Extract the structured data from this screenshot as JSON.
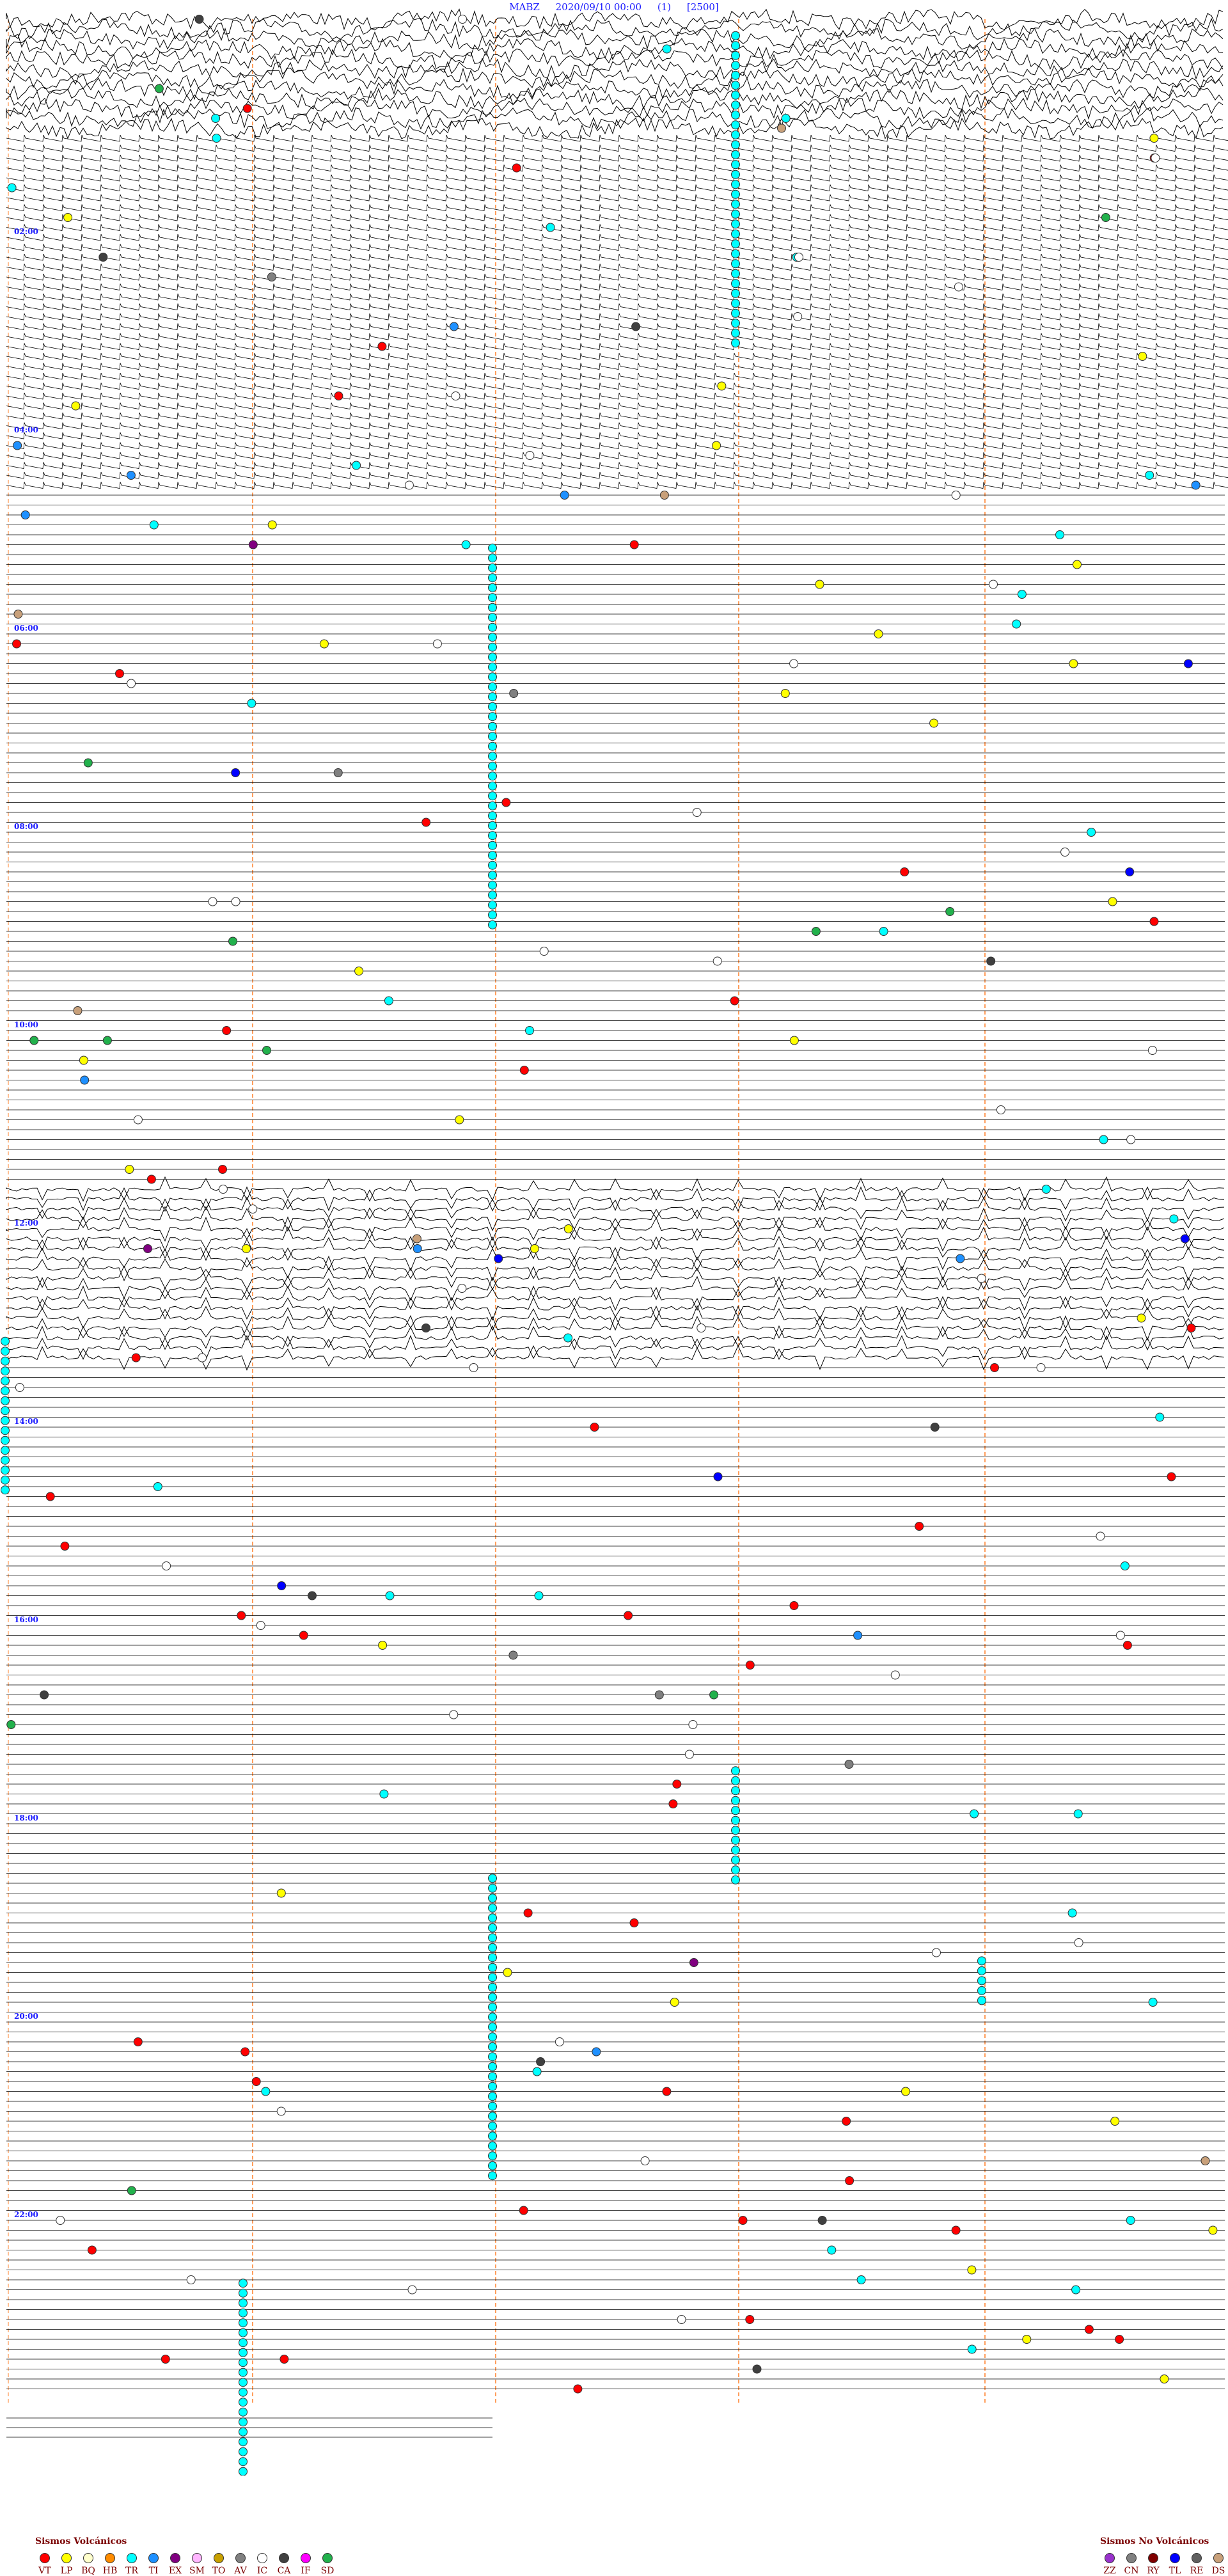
{
  "header": {
    "station": "MABZ",
    "datetime": "2020/09/10 00:00",
    "component": "(1)",
    "scale": "[2500]"
  },
  "hour_labels": [
    "02:00",
    "04:00",
    "06:00",
    "08:00",
    "10:00",
    "12:00",
    "14:00",
    "16:00",
    "18:00",
    "20:00",
    "22:00"
  ],
  "legend_volcanic": {
    "title": "Sismos Volcánicos",
    "items": [
      {
        "code": "VT",
        "color": "#ff0000"
      },
      {
        "code": "LP",
        "color": "#ffff00"
      },
      {
        "code": "BQ",
        "color": "#ffffcc"
      },
      {
        "code": "HB",
        "color": "#ff8c00"
      },
      {
        "code": "TR",
        "color": "#00ffff"
      },
      {
        "code": "TI",
        "color": "#1e90ff"
      },
      {
        "code": "EX",
        "color": "#800080"
      },
      {
        "code": "SM",
        "color": "#ffb6ff"
      },
      {
        "code": "TO",
        "color": "#c8a000"
      },
      {
        "code": "AV",
        "color": "#808080"
      },
      {
        "code": "IC",
        "color": "#ffffff"
      },
      {
        "code": "CA",
        "color": "#404040"
      },
      {
        "code": "IF",
        "color": "#ff00ff"
      },
      {
        "code": "SD",
        "color": "#22b14c"
      }
    ]
  },
  "legend_nonvolcanic": {
    "title": "Sismos No Volcánicos",
    "items": [
      {
        "code": "ZZ",
        "color": "#9932cc"
      },
      {
        "code": "CN",
        "color": "#808080"
      },
      {
        "code": "RY",
        "color": "#800000"
      },
      {
        "code": "TL",
        "color": "#0000ff"
      },
      {
        "code": "RE",
        "color": "#606060"
      },
      {
        "code": "DS",
        "color": "#c8a07a"
      }
    ]
  }
}
